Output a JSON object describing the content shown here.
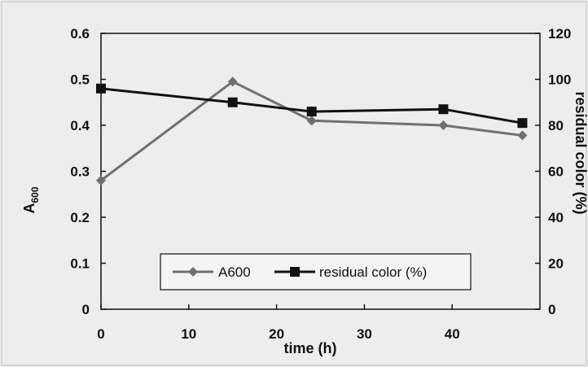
{
  "chart_data": {
    "type": "line",
    "x": [
      0,
      15,
      24,
      39,
      48
    ],
    "xlabel": "time (h)",
    "xlim": [
      0,
      50
    ],
    "xticks": [
      "0",
      "10",
      "20",
      "30",
      "40"
    ],
    "series": [
      {
        "name": "A600",
        "axis": "left",
        "marker": "diamond",
        "color": "#707070",
        "values": [
          0.28,
          0.495,
          0.41,
          0.4,
          0.378
        ]
      },
      {
        "name": "residual color (%)",
        "axis": "right",
        "marker": "square",
        "color": "#111111",
        "values": [
          96,
          90,
          86,
          87,
          81
        ]
      }
    ],
    "ylabel_left": {
      "main": "A",
      "sub": "600"
    },
    "ylim_left": [
      0,
      0.6
    ],
    "yticks_left": [
      "0",
      "0.1",
      "0.2",
      "0.3",
      "0.4",
      "0.5",
      "0.6"
    ],
    "ylabel_right": "residual color (%)",
    "ylim_right": [
      0,
      120
    ],
    "yticks_right": [
      "0",
      "20",
      "40",
      "60",
      "80",
      "100",
      "120"
    ],
    "grid": false,
    "legend_position": "bottom-center"
  }
}
